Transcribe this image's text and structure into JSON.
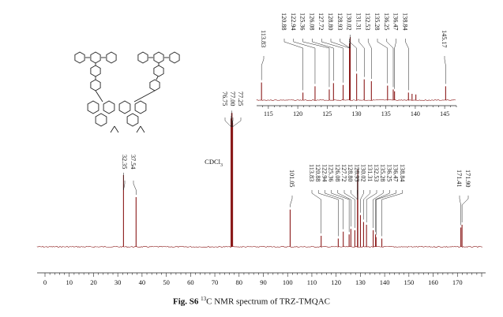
{
  "chart_data": {
    "type": "nmr-spectrum",
    "x_axis_reversed": true,
    "xlim": [
      0,
      180
    ],
    "tick_labels": [
      "0",
      "10",
      "20",
      "30",
      "40",
      "50",
      "60",
      "70",
      "80",
      "90",
      "100",
      "110",
      "120",
      "130",
      "140",
      "150",
      "160",
      "170"
    ],
    "solvent_label": "CDCl",
    "solvent_subscript": "3",
    "line_color": "#8b1a1a",
    "main_peaks": [
      {
        "ppm": 32.35,
        "h": 0.52
      },
      {
        "ppm": 37.54,
        "h": 0.36
      },
      {
        "ppm": 76.75,
        "h": 0.93
      },
      {
        "ppm": 77.0,
        "h": 0.97
      },
      {
        "ppm": 77.25,
        "h": 0.9
      },
      {
        "ppm": 101.05,
        "h": 0.27
      },
      {
        "ppm": 113.83,
        "h": 0.08
      },
      {
        "ppm": 120.88,
        "h": 0.06
      },
      {
        "ppm": 122.94,
        "h": 0.11
      },
      {
        "ppm": 125.36,
        "h": 0.09
      },
      {
        "ppm": 126.08,
        "h": 0.13
      },
      {
        "ppm": 127.72,
        "h": 0.12
      },
      {
        "ppm": 128.8,
        "h": 0.48
      },
      {
        "ppm": 128.93,
        "h": 0.56
      },
      {
        "ppm": 130.02,
        "h": 0.23
      },
      {
        "ppm": 131.31,
        "h": 0.18
      },
      {
        "ppm": 132.53,
        "h": 0.16
      },
      {
        "ppm": 135.28,
        "h": 0.12
      },
      {
        "ppm": 136.25,
        "h": 0.09
      },
      {
        "ppm": 136.47,
        "h": 0.07
      },
      {
        "ppm": 138.84,
        "h": 0.06
      },
      {
        "ppm": 171.41,
        "h": 0.14
      },
      {
        "ppm": 171.9,
        "h": 0.16
      }
    ],
    "main_labels": {
      "left": [
        "32.35",
        "37.54"
      ],
      "solvent": [
        "76.75",
        "77.00",
        "77.25"
      ],
      "lone": [
        "101.05"
      ],
      "aromatic": [
        "113.83",
        "120.88",
        "122.94",
        "125.36",
        "126.08",
        "127.72",
        "128.80",
        "128.93",
        "130.02",
        "131.31",
        "132.53",
        "135.28",
        "136.25",
        "136.47",
        "138.84"
      ],
      "right": [
        "171.41",
        "171.90"
      ]
    },
    "inset": {
      "xlim": [
        113,
        147
      ],
      "tick_labels": [
        "115",
        "120",
        "125",
        "130",
        "135",
        "140",
        "145"
      ],
      "peaks": [
        {
          "ppm": 113.83,
          "h": 0.28
        },
        {
          "ppm": 120.88,
          "h": 0.12
        },
        {
          "ppm": 122.94,
          "h": 0.22
        },
        {
          "ppm": 125.36,
          "h": 0.17
        },
        {
          "ppm": 126.08,
          "h": 0.27
        },
        {
          "ppm": 127.72,
          "h": 0.24
        },
        {
          "ppm": 128.8,
          "h": 0.9
        },
        {
          "ppm": 128.93,
          "h": 1.0
        },
        {
          "ppm": 130.02,
          "h": 0.42
        },
        {
          "ppm": 131.31,
          "h": 0.33
        },
        {
          "ppm": 132.53,
          "h": 0.3
        },
        {
          "ppm": 135.28,
          "h": 0.23
        },
        {
          "ppm": 136.25,
          "h": 0.17
        },
        {
          "ppm": 136.47,
          "h": 0.14
        },
        {
          "ppm": 138.84,
          "h": 0.12
        },
        {
          "ppm": 139.45,
          "h": 0.1
        },
        {
          "ppm": 140.1,
          "h": 0.09
        },
        {
          "ppm": 145.17,
          "h": 0.22
        }
      ],
      "labels": {
        "lone": [
          "113.83"
        ],
        "group": [
          "120.88",
          "122.94",
          "125.36",
          "126.08",
          "127.72",
          "128.80",
          "128.93",
          "130.02",
          "131.31",
          "132.53",
          "135.28",
          "136.25",
          "136.47",
          "138.84"
        ],
        "right": [
          "145.17"
        ]
      }
    }
  },
  "caption": {
    "fig_label": "Fig. S6",
    "isotope": "13",
    "text": "C NMR spectrum of TRZ-TMQAC"
  }
}
